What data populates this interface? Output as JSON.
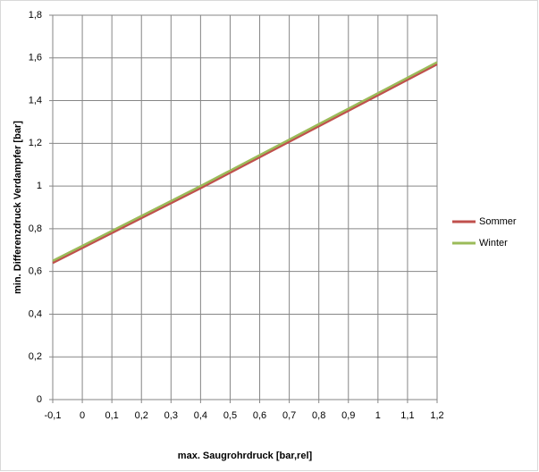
{
  "chart_data": {
    "type": "line",
    "x_label": "max. Saugrohrdruck  [bar,rel]",
    "y_label": "min. Differenzdruck Verdampfer [bar]",
    "x": [
      -0.1,
      0.4,
      1.2
    ],
    "series": [
      {
        "name": "Sommer",
        "color": "#c0504d",
        "values": [
          0.64,
          0.99,
          1.57
        ]
      },
      {
        "name": "Winter",
        "color": "#9bbb59",
        "values": [
          0.65,
          1.0,
          1.58
        ]
      }
    ],
    "xlim": [
      -0.1,
      1.2
    ],
    "xticks": [
      {
        "value": -0.1,
        "label": "-0,1"
      },
      0,
      {
        "value": 0.1,
        "label": "0,1"
      },
      {
        "value": 0.2,
        "label": "0,2"
      },
      {
        "value": 0.3,
        "label": "0,3"
      },
      {
        "value": 0.4,
        "label": "0,4"
      },
      {
        "value": 0.5,
        "label": "0,5"
      },
      {
        "value": 0.6,
        "label": "0,6"
      },
      {
        "value": 0.7,
        "label": "0,7"
      },
      {
        "value": 0.8,
        "label": "0,8"
      },
      {
        "value": 0.9,
        "label": "0,9"
      },
      1,
      {
        "value": 1.1,
        "label": "1,1"
      },
      {
        "value": 1.2,
        "label": "1,2"
      }
    ],
    "ylim": [
      0,
      1.8
    ],
    "yticks": [
      0,
      {
        "value": 0.2,
        "label": "0,2"
      },
      {
        "value": 0.4,
        "label": "0,4"
      },
      {
        "value": 0.6,
        "label": "0,6"
      },
      {
        "value": 0.8,
        "label": "0,8"
      },
      1,
      {
        "value": 1.2,
        "label": "1,2"
      },
      {
        "value": 1.4,
        "label": "1,4"
      },
      {
        "value": 1.6,
        "label": "1,6"
      },
      {
        "value": 1.8,
        "label": "1,8"
      }
    ],
    "grid": true,
    "legend": "right"
  }
}
